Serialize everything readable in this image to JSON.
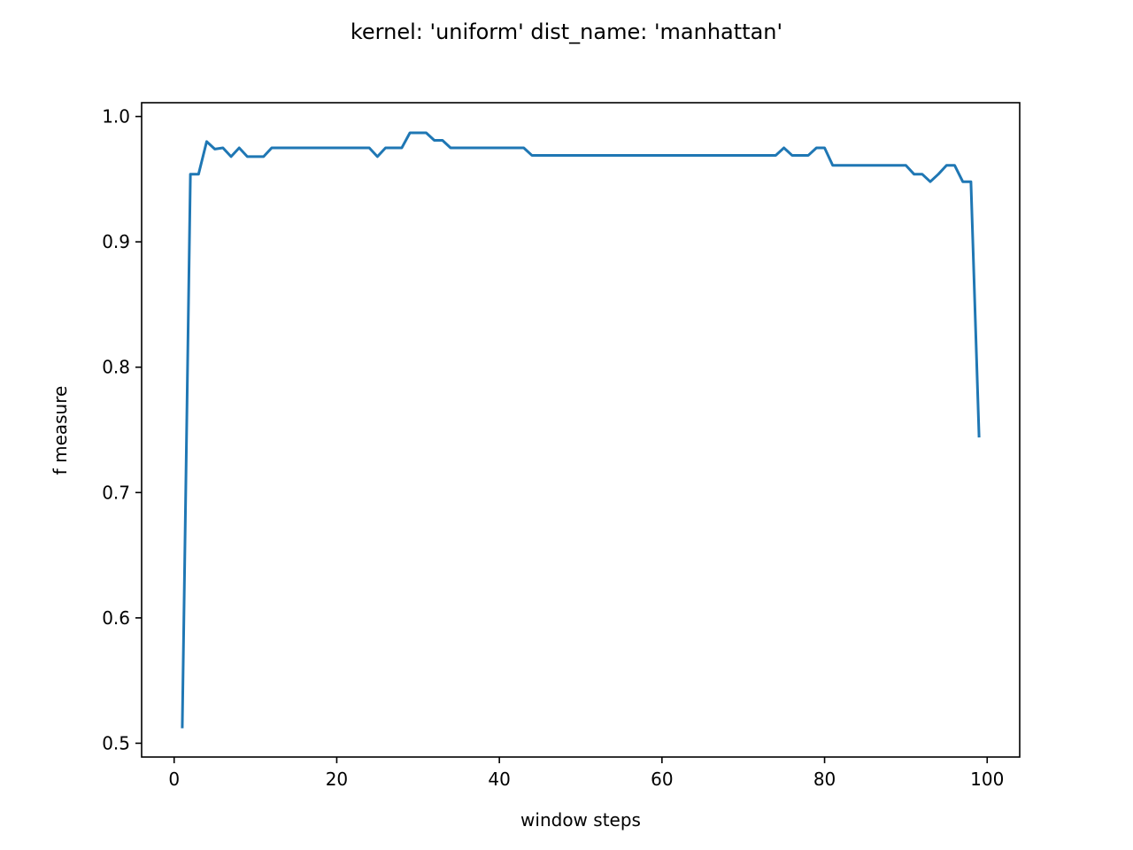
{
  "chart_data": {
    "type": "line",
    "title": "kernel: 'uniform' dist_name: 'manhattan'",
    "xlabel": "window steps",
    "ylabel": "f measure",
    "xlim": [
      -4,
      104
    ],
    "ylim": [
      0.489,
      1.011
    ],
    "xticks": [
      0,
      20,
      40,
      60,
      80,
      100
    ],
    "xtick_labels": [
      "0",
      "20",
      "40",
      "60",
      "80",
      "100"
    ],
    "yticks": [
      0.5,
      0.6,
      0.7,
      0.8,
      0.9,
      1.0
    ],
    "ytick_labels": [
      "0.5",
      "0.6",
      "0.7",
      "0.8",
      "0.9",
      "1.0"
    ],
    "grid": false,
    "line_color": "#1f77b4",
    "x": [
      1,
      2,
      3,
      4,
      5,
      6,
      7,
      8,
      9,
      10,
      11,
      12,
      13,
      14,
      15,
      16,
      17,
      18,
      19,
      20,
      21,
      22,
      23,
      24,
      25,
      26,
      27,
      28,
      29,
      30,
      31,
      32,
      33,
      34,
      35,
      36,
      37,
      38,
      39,
      40,
      41,
      42,
      43,
      44,
      45,
      46,
      47,
      48,
      49,
      50,
      51,
      52,
      53,
      54,
      55,
      56,
      57,
      58,
      59,
      60,
      61,
      62,
      63,
      64,
      65,
      66,
      67,
      68,
      69,
      70,
      71,
      72,
      73,
      74,
      75,
      76,
      77,
      78,
      79,
      80,
      81,
      82,
      83,
      84,
      85,
      86,
      87,
      88,
      89,
      90,
      91,
      92,
      93,
      94,
      95,
      96,
      97,
      98,
      99
    ],
    "y": [
      0.513,
      0.954,
      0.954,
      0.98,
      0.974,
      0.975,
      0.968,
      0.975,
      0.968,
      0.968,
      0.968,
      0.975,
      0.975,
      0.975,
      0.975,
      0.975,
      0.975,
      0.975,
      0.975,
      0.975,
      0.975,
      0.975,
      0.975,
      0.975,
      0.968,
      0.975,
      0.975,
      0.975,
      0.987,
      0.987,
      0.987,
      0.981,
      0.981,
      0.975,
      0.975,
      0.975,
      0.975,
      0.975,
      0.975,
      0.975,
      0.975,
      0.975,
      0.975,
      0.969,
      0.969,
      0.969,
      0.969,
      0.969,
      0.969,
      0.969,
      0.969,
      0.969,
      0.969,
      0.969,
      0.969,
      0.969,
      0.969,
      0.969,
      0.969,
      0.969,
      0.969,
      0.969,
      0.969,
      0.969,
      0.969,
      0.969,
      0.969,
      0.969,
      0.969,
      0.969,
      0.969,
      0.969,
      0.969,
      0.969,
      0.975,
      0.969,
      0.969,
      0.969,
      0.975,
      0.975,
      0.961,
      0.961,
      0.961,
      0.961,
      0.961,
      0.961,
      0.961,
      0.961,
      0.961,
      0.961,
      0.954,
      0.954,
      0.948,
      0.954,
      0.961,
      0.961,
      0.948,
      0.948,
      0.745
    ]
  }
}
